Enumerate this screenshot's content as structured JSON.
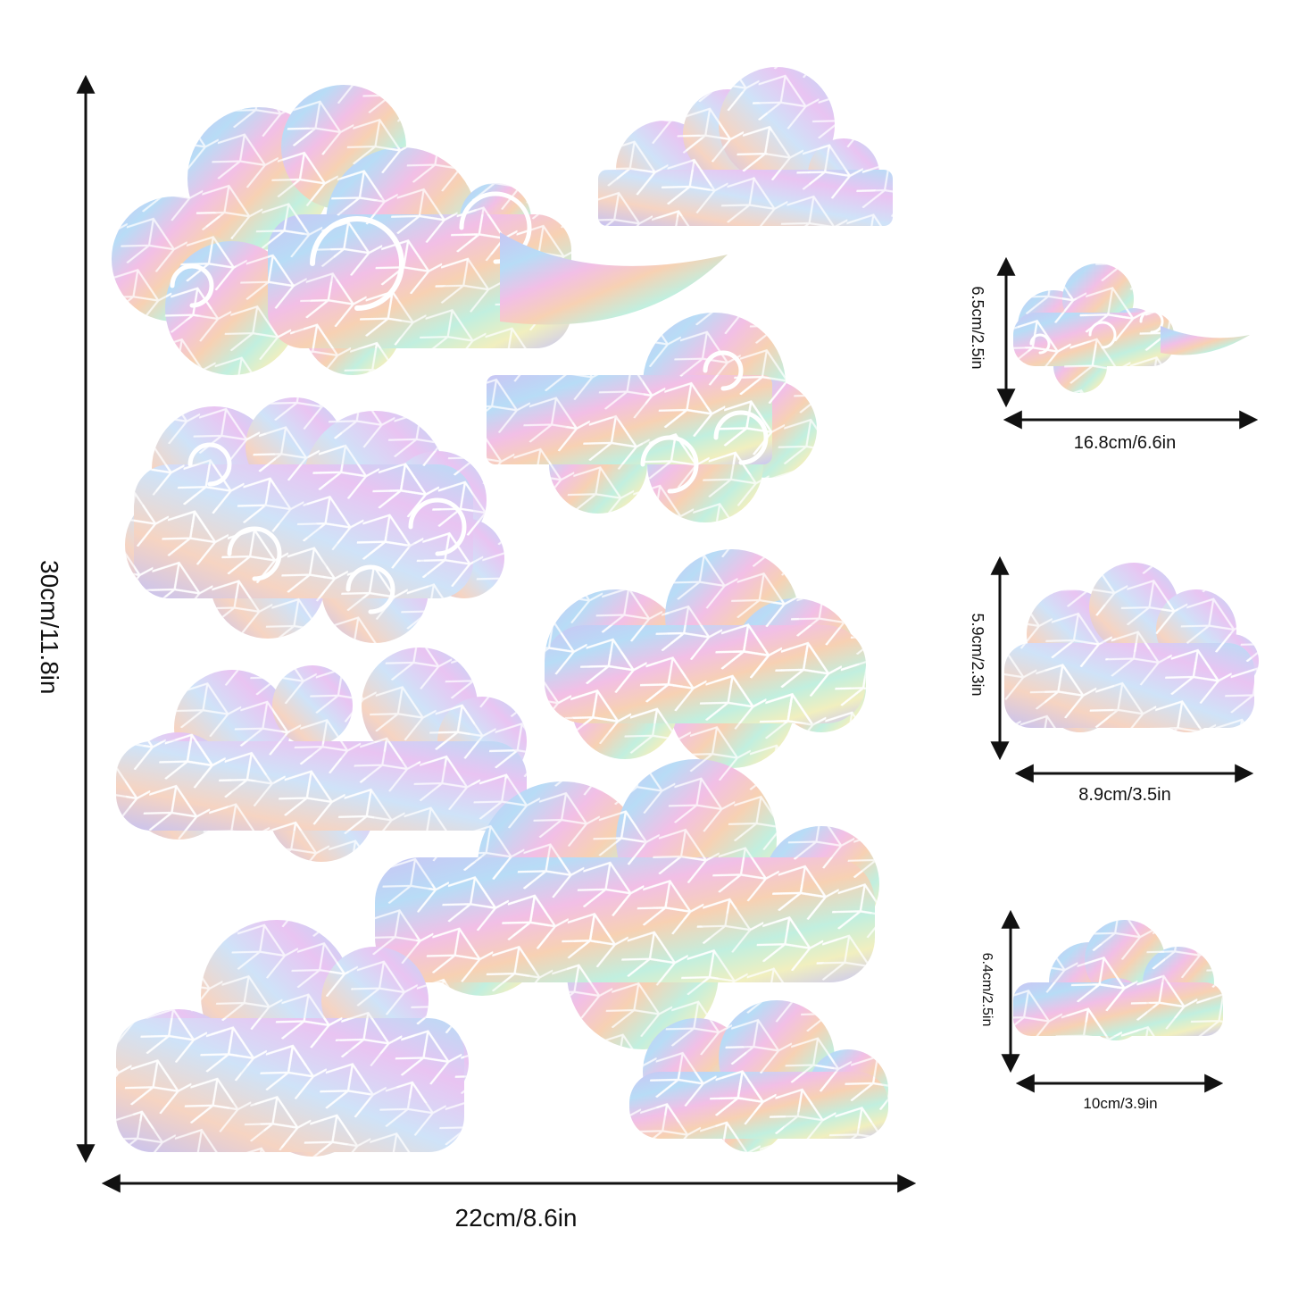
{
  "dimensions": {
    "main_height": "30cm/11.8in",
    "main_width": "22cm/8.6in",
    "sample_1_height": "6.5cm/2.5in",
    "sample_1_width": "16.8cm/6.6in",
    "sample_2_height": "5.9cm/2.3in",
    "sample_2_width": "8.9cm/3.5in",
    "sample_3_height": "6.4cm/2.5in",
    "sample_3_width": "10cm/3.9in"
  },
  "colors": {
    "arrow": "#111111",
    "iridescent_lavender": "#c9c6f4",
    "iridescent_sky": "#b8dcf6",
    "iridescent_pink": "#f2bfe6",
    "iridescent_peach": "#f7d1b3",
    "iridescent_mint": "#c1efdf",
    "iridescent_lemon": "#f1efbf",
    "crack_lines": "#ffffff"
  },
  "icons": [
    "double-arrow-icon",
    "cloud-sticker-icon",
    "swirl-cloud-sticker-icon"
  ]
}
